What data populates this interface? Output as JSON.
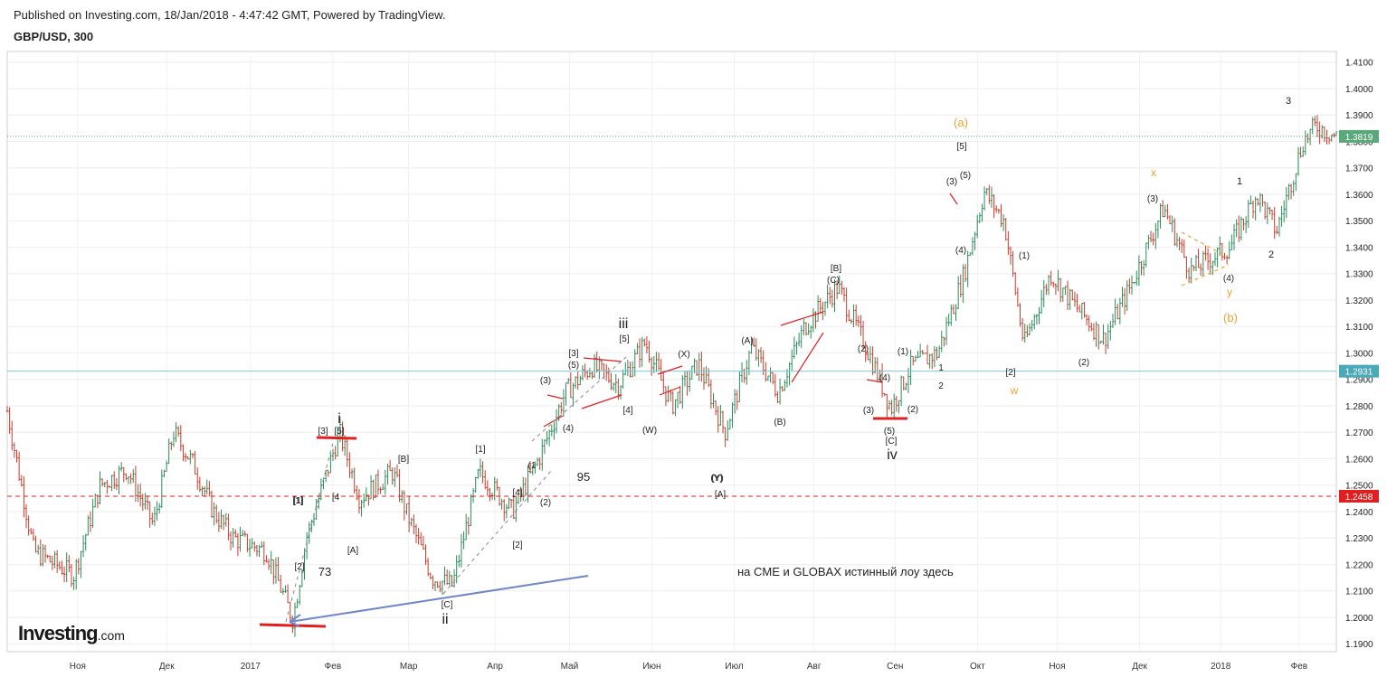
{
  "header": {
    "published": "Published on Investing.com, 18/Jan/2018 - 4:47:42 GMT, Powered by TradingView.",
    "symbol": "GBP/USD, 300"
  },
  "logo": {
    "text": "Investing",
    "suffix": ".com"
  },
  "colors": {
    "bull": "#2a8c5a",
    "bear": "#cc3b2b",
    "wave_line": "#e02020",
    "orange": "#f0a030",
    "arrow": "#6f86c8",
    "hline_blue": "#7fc6d8",
    "hline_red": "#e02020",
    "price_tag_green": "#5aa87a",
    "price_tag_teal": "#4aa8b8",
    "price_tag_red": "#e02020"
  },
  "chart_data": {
    "type": "candlestick",
    "title": "GBP/USD, 300",
    "x_ticks": [
      "Ноя",
      "Дек",
      "2017",
      "Фев",
      "Мар",
      "Апр",
      "Май",
      "Июн",
      "Июл",
      "Авг",
      "Сен",
      "Окт",
      "Ноя",
      "Дек",
      "2018",
      "Фев"
    ],
    "ylim": [
      1.187,
      1.414
    ],
    "y_ticks": [
      "1.1900",
      "1.2000",
      "1.2100",
      "1.2200",
      "1.2300",
      "1.2400",
      "1.2500",
      "1.2600",
      "1.2700",
      "1.2800",
      "1.2900",
      "1.3000",
      "1.3100",
      "1.3200",
      "1.3300",
      "1.3400",
      "1.3500",
      "1.3600",
      "1.3700",
      "1.3800",
      "1.3900",
      "1.4000",
      "1.4100"
    ],
    "price_tags": [
      {
        "label": "1.3819",
        "value": 1.3819,
        "style": "last"
      },
      {
        "label": "1.2931",
        "value": 1.2931,
        "style": "level"
      },
      {
        "label": "1.2458",
        "value": 1.2458,
        "style": "support"
      }
    ],
    "path": [
      {
        "t": 0.0,
        "p": 1.278
      },
      {
        "t": 0.02,
        "p": 1.225
      },
      {
        "t": 0.05,
        "p": 1.216
      },
      {
        "t": 0.07,
        "p": 1.25
      },
      {
        "t": 0.09,
        "p": 1.256
      },
      {
        "t": 0.11,
        "p": 1.235
      },
      {
        "t": 0.125,
        "p": 1.27
      },
      {
        "t": 0.14,
        "p": 1.258
      },
      {
        "t": 0.155,
        "p": 1.24
      },
      {
        "t": 0.17,
        "p": 1.23
      },
      {
        "t": 0.195,
        "p": 1.225
      },
      {
        "t": 0.215,
        "p": 1.199
      },
      {
        "t": 0.225,
        "p": 1.23
      },
      {
        "t": 0.25,
        "p": 1.27
      },
      {
        "t": 0.265,
        "p": 1.245
      },
      {
        "t": 0.29,
        "p": 1.255
      },
      {
        "t": 0.3,
        "p": 1.24
      },
      {
        "t": 0.32,
        "p": 1.215
      },
      {
        "t": 0.335,
        "p": 1.212
      },
      {
        "t": 0.355,
        "p": 1.255
      },
      {
        "t": 0.38,
        "p": 1.24
      },
      {
        "t": 0.4,
        "p": 1.26
      },
      {
        "t": 0.42,
        "p": 1.285
      },
      {
        "t": 0.44,
        "p": 1.295
      },
      {
        "t": 0.46,
        "p": 1.288
      },
      {
        "t": 0.48,
        "p": 1.304
      },
      {
        "t": 0.5,
        "p": 1.28
      },
      {
        "t": 0.52,
        "p": 1.296
      },
      {
        "t": 0.54,
        "p": 1.27
      },
      {
        "t": 0.56,
        "p": 1.302
      },
      {
        "t": 0.58,
        "p": 1.285
      },
      {
        "t": 0.6,
        "p": 1.31
      },
      {
        "t": 0.625,
        "p": 1.325
      },
      {
        "t": 0.65,
        "p": 1.298
      },
      {
        "t": 0.665,
        "p": 1.279
      },
      {
        "t": 0.68,
        "p": 1.295
      },
      {
        "t": 0.7,
        "p": 1.3
      },
      {
        "t": 0.72,
        "p": 1.33
      },
      {
        "t": 0.735,
        "p": 1.361
      },
      {
        "t": 0.75,
        "p": 1.35
      },
      {
        "t": 0.765,
        "p": 1.303
      },
      {
        "t": 0.785,
        "p": 1.33
      },
      {
        "t": 0.8,
        "p": 1.32
      },
      {
        "t": 0.825,
        "p": 1.305
      },
      {
        "t": 0.845,
        "p": 1.325
      },
      {
        "t": 0.87,
        "p": 1.355
      },
      {
        "t": 0.89,
        "p": 1.331
      },
      {
        "t": 0.92,
        "p": 1.34
      },
      {
        "t": 0.94,
        "p": 1.36
      },
      {
        "t": 0.955,
        "p": 1.346
      },
      {
        "t": 0.975,
        "p": 1.38
      },
      {
        "t": 0.985,
        "p": 1.386
      },
      {
        "t": 1.0,
        "p": 1.3819
      }
    ],
    "annotations": [
      {
        "text": "(a)",
        "color": "orange"
      },
      {
        "text": "x",
        "color": "orange"
      },
      {
        "text": "y",
        "color": "orange"
      },
      {
        "text": "(b)",
        "color": "orange"
      },
      {
        "text": "w",
        "color": "orange"
      },
      {
        "text": "i",
        "color": "dark"
      },
      {
        "text": "ii",
        "color": "dark"
      },
      {
        "text": "iii",
        "color": "dark"
      },
      {
        "text": "iv",
        "color": "dark"
      },
      {
        "text": "3",
        "color": "dark"
      },
      {
        "text": "1",
        "color": "dark"
      },
      {
        "text": "2",
        "color": "dark"
      },
      {
        "text": "73",
        "color": "dark"
      },
      {
        "text": "95",
        "color": "dark"
      },
      {
        "text": "на CME и GLOBAX  истинный лоу здесь",
        "color": "dark"
      },
      {
        "text": "[1]"
      },
      {
        "text": "[2]"
      },
      {
        "text": "[3]"
      },
      {
        "text": "[4]"
      },
      {
        "text": "[5]"
      },
      {
        "text": "[A]"
      },
      {
        "text": "[B]"
      },
      {
        "text": "[C]"
      },
      {
        "text": "(1)"
      },
      {
        "text": "(2)"
      },
      {
        "text": "(3)"
      },
      {
        "text": "(4)"
      },
      {
        "text": "(5)"
      },
      {
        "text": "(A)"
      },
      {
        "text": "(B)"
      },
      {
        "text": "(C)"
      },
      {
        "text": "(W)"
      },
      {
        "text": "(X)"
      },
      {
        "text": "(Y)"
      }
    ]
  }
}
